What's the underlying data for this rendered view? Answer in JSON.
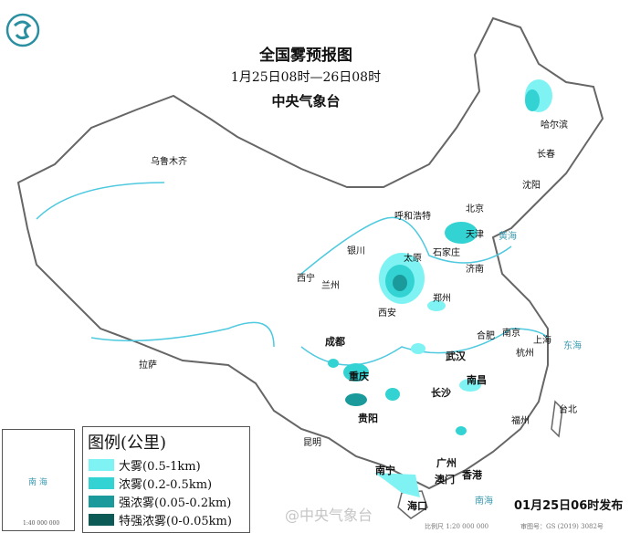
{
  "title": "全国雾预报图",
  "period": "1月25日08时—26日08时",
  "issuer": "中央气象台",
  "publish_time": "01月25日06时发布",
  "scale": "比例尺 1:20 000 000",
  "map_number": "审图号：GS (2019) 3082号",
  "watermark": "@中央气象台",
  "logo_text": "中央气象台",
  "inset": {
    "sea": "南 海",
    "scale": "1:40 000 000"
  },
  "legend": {
    "title": "图例(公里)",
    "items": [
      {
        "label": "大雾(0.5-1km)",
        "color": "#7ff3f3"
      },
      {
        "label": "浓雾(0.2-0.5km)",
        "color": "#33d3d3"
      },
      {
        "label": "强浓雾(0.05-0.2km)",
        "color": "#1a9a9a"
      },
      {
        "label": "特强浓雾(0-0.05km)",
        "color": "#0b5a55"
      }
    ]
  },
  "seas": [
    "黄海",
    "东海",
    "南海"
  ],
  "cities": [
    "乌鲁木齐",
    "哈尔滨",
    "长春",
    "沈阳",
    "北京",
    "天津",
    "呼和浩特",
    "石家庄",
    "太原",
    "济南",
    "银川",
    "西宁",
    "兰州",
    "西安",
    "郑州",
    "合肥",
    "南京",
    "上海",
    "杭州",
    "武汉",
    "成都",
    "重庆",
    "拉萨",
    "长沙",
    "南昌",
    "贵阳",
    "昆明",
    "福州",
    "台北",
    "南宁",
    "广州",
    "澳门",
    "香港",
    "海口"
  ]
}
